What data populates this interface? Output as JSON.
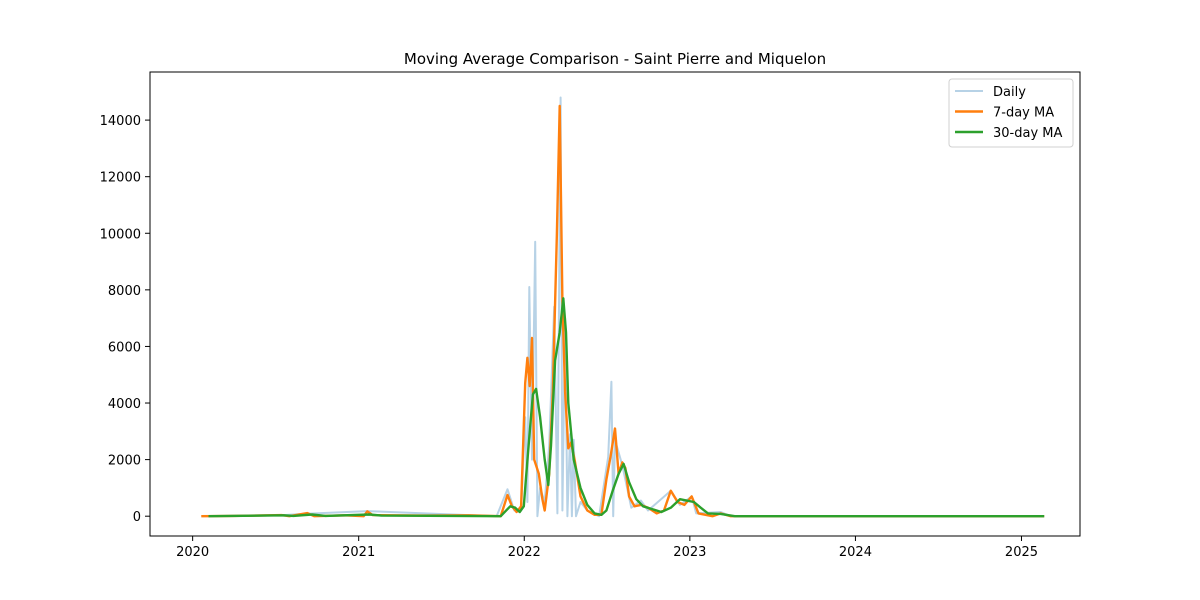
{
  "chart_data": {
    "type": "line",
    "title": "Moving Average Comparison - Saint Pierre and Miquelon",
    "xlabel": "",
    "ylabel": "",
    "x_ticks": [
      "2020",
      "2021",
      "2022",
      "2023",
      "2024",
      "2025"
    ],
    "y_ticks": [
      0,
      2000,
      4000,
      6000,
      8000,
      10000,
      12000,
      14000
    ],
    "xlim": [
      "2019-09-29",
      "2025-05-10"
    ],
    "ylim": [
      -700,
      15700
    ],
    "grid": false,
    "legend": {
      "position": "top-right"
    },
    "series": [
      {
        "name": "Daily",
        "color": "#b7d2e6",
        "points": [
          [
            "2020-01-20",
            0
          ],
          [
            "2020-07-15",
            30
          ],
          [
            "2020-09-01",
            80
          ],
          [
            "2021-01-20",
            180
          ],
          [
            "2021-11-01",
            0
          ],
          [
            "2021-11-25",
            950
          ],
          [
            "2021-12-10",
            200
          ],
          [
            "2021-12-25",
            200
          ],
          [
            "2022-01-03",
            3500
          ],
          [
            "2022-01-08",
            500
          ],
          [
            "2022-01-12",
            8100
          ],
          [
            "2022-01-18",
            2000
          ],
          [
            "2022-01-25",
            9700
          ],
          [
            "2022-01-30",
            0
          ],
          [
            "2022-02-05",
            1000
          ],
          [
            "2022-02-15",
            500
          ],
          [
            "2022-02-25",
            2500
          ],
          [
            "2022-03-08",
            7400
          ],
          [
            "2022-03-15",
            100
          ],
          [
            "2022-03-22",
            14800
          ],
          [
            "2022-03-26",
            200
          ],
          [
            "2022-04-01",
            7000
          ],
          [
            "2022-04-06",
            0
          ],
          [
            "2022-04-12",
            2900
          ],
          [
            "2022-04-16",
            0
          ],
          [
            "2022-04-20",
            2700
          ],
          [
            "2022-04-25",
            0
          ],
          [
            "2022-05-05",
            500
          ],
          [
            "2022-05-20",
            200
          ],
          [
            "2022-06-15",
            0
          ],
          [
            "2022-07-05",
            2100
          ],
          [
            "2022-07-12",
            4750
          ],
          [
            "2022-07-16",
            0
          ],
          [
            "2022-07-20",
            2700
          ],
          [
            "2022-08-05",
            1800
          ],
          [
            "2022-08-25",
            300
          ],
          [
            "2022-09-15",
            550
          ],
          [
            "2022-10-01",
            200
          ],
          [
            "2022-11-20",
            900
          ],
          [
            "2022-12-10",
            400
          ],
          [
            "2023-01-05",
            700
          ],
          [
            "2023-01-15",
            100
          ],
          [
            "2023-03-10",
            150
          ],
          [
            "2023-04-01",
            0
          ],
          [
            "2025-02-20",
            0
          ]
        ]
      },
      {
        "name": "7-day MA",
        "color": "#ff7f0e",
        "points": [
          [
            "2020-01-20",
            0
          ],
          [
            "2020-04-01",
            10
          ],
          [
            "2020-07-15",
            40
          ],
          [
            "2020-08-01",
            0
          ],
          [
            "2020-09-10",
            110
          ],
          [
            "2020-09-25",
            0
          ],
          [
            "2020-12-01",
            30
          ],
          [
            "2021-01-12",
            0
          ],
          [
            "2021-01-20",
            170
          ],
          [
            "2021-02-01",
            40
          ],
          [
            "2021-06-01",
            20
          ],
          [
            "2021-09-01",
            30
          ],
          [
            "2021-11-10",
            0
          ],
          [
            "2021-11-25",
            750
          ],
          [
            "2021-12-05",
            350
          ],
          [
            "2021-12-15",
            150
          ],
          [
            "2021-12-25",
            350
          ],
          [
            "2022-01-03",
            4700
          ],
          [
            "2022-01-08",
            5600
          ],
          [
            "2022-01-13",
            4600
          ],
          [
            "2022-01-18",
            6300
          ],
          [
            "2022-01-23",
            2000
          ],
          [
            "2022-02-02",
            1500
          ],
          [
            "2022-02-10",
            600
          ],
          [
            "2022-02-15",
            200
          ],
          [
            "2022-02-25",
            1500
          ],
          [
            "2022-03-05",
            4400
          ],
          [
            "2022-03-14",
            10000
          ],
          [
            "2022-03-20",
            14500
          ],
          [
            "2022-03-26",
            7600
          ],
          [
            "2022-04-01",
            4400
          ],
          [
            "2022-04-08",
            2400
          ],
          [
            "2022-04-14",
            2600
          ],
          [
            "2022-04-22",
            2000
          ],
          [
            "2022-05-05",
            700
          ],
          [
            "2022-05-20",
            200
          ],
          [
            "2022-06-05",
            50
          ],
          [
            "2022-06-20",
            50
          ],
          [
            "2022-07-01",
            1300
          ],
          [
            "2022-07-10",
            2100
          ],
          [
            "2022-07-20",
            3100
          ],
          [
            "2022-07-28",
            1500
          ],
          [
            "2022-08-05",
            1900
          ],
          [
            "2022-08-12",
            1700
          ],
          [
            "2022-08-20",
            700
          ],
          [
            "2022-09-01",
            350
          ],
          [
            "2022-09-15",
            400
          ],
          [
            "2022-10-01",
            300
          ],
          [
            "2022-10-20",
            100
          ],
          [
            "2022-11-05",
            200
          ],
          [
            "2022-11-20",
            900
          ],
          [
            "2022-12-05",
            500
          ],
          [
            "2022-12-20",
            400
          ],
          [
            "2023-01-05",
            700
          ],
          [
            "2023-01-20",
            100
          ],
          [
            "2023-02-20",
            0
          ],
          [
            "2023-03-10",
            100
          ],
          [
            "2023-04-01",
            0
          ],
          [
            "2025-02-20",
            0
          ]
        ]
      },
      {
        "name": "30-day MA",
        "color": "#2ca02c",
        "points": [
          [
            "2020-02-05",
            0
          ],
          [
            "2020-07-20",
            30
          ],
          [
            "2020-08-10",
            10
          ],
          [
            "2020-09-20",
            60
          ],
          [
            "2020-10-20",
            10
          ],
          [
            "2021-01-25",
            60
          ],
          [
            "2021-02-20",
            20
          ],
          [
            "2021-11-10",
            0
          ],
          [
            "2021-12-01",
            350
          ],
          [
            "2021-12-12",
            300
          ],
          [
            "2021-12-22",
            150
          ],
          [
            "2021-12-31",
            350
          ],
          [
            "2022-01-05",
            1400
          ],
          [
            "2022-01-12",
            2800
          ],
          [
            "2022-01-20",
            4300
          ],
          [
            "2022-01-27",
            4500
          ],
          [
            "2022-02-05",
            3500
          ],
          [
            "2022-02-15",
            2000
          ],
          [
            "2022-02-23",
            1100
          ],
          [
            "2022-03-01",
            2500
          ],
          [
            "2022-03-10",
            5500
          ],
          [
            "2022-03-20",
            6500
          ],
          [
            "2022-03-28",
            7700
          ],
          [
            "2022-04-03",
            6500
          ],
          [
            "2022-04-08",
            4000
          ],
          [
            "2022-04-20",
            2000
          ],
          [
            "2022-05-05",
            1000
          ],
          [
            "2022-05-20",
            400
          ],
          [
            "2022-06-05",
            100
          ],
          [
            "2022-06-20",
            50
          ],
          [
            "2022-07-01",
            200
          ],
          [
            "2022-07-15",
            900
          ],
          [
            "2022-07-28",
            1500
          ],
          [
            "2022-08-08",
            1850
          ],
          [
            "2022-08-20",
            1200
          ],
          [
            "2022-09-05",
            600
          ],
          [
            "2022-09-20",
            350
          ],
          [
            "2022-10-10",
            250
          ],
          [
            "2022-10-30",
            150
          ],
          [
            "2022-11-20",
            300
          ],
          [
            "2022-12-10",
            600
          ],
          [
            "2022-12-25",
            550
          ],
          [
            "2023-01-10",
            500
          ],
          [
            "2023-01-25",
            300
          ],
          [
            "2023-02-10",
            100
          ],
          [
            "2023-03-10",
            80
          ],
          [
            "2023-04-10",
            0
          ],
          [
            "2025-02-20",
            0
          ]
        ]
      }
    ]
  }
}
